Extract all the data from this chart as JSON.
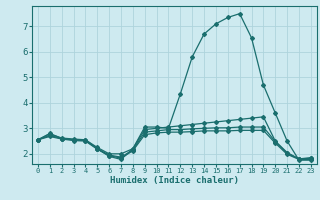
{
  "xlabel": "Humidex (Indice chaleur)",
  "background_color": "#ceeaf0",
  "grid_color": "#aed4dc",
  "line_color": "#1a6e6e",
  "xlim": [
    -0.5,
    23.5
  ],
  "ylim": [
    1.6,
    7.8
  ],
  "xticks": [
    0,
    1,
    2,
    3,
    4,
    5,
    6,
    7,
    8,
    9,
    10,
    11,
    12,
    13,
    14,
    15,
    16,
    17,
    18,
    19,
    20,
    21,
    22,
    23
  ],
  "yticks": [
    2,
    3,
    4,
    5,
    6,
    7
  ],
  "lines": [
    [
      2.55,
      2.8,
      2.6,
      2.55,
      2.55,
      2.2,
      1.9,
      1.78,
      2.2,
      3.05,
      3.05,
      3.0,
      4.35,
      5.8,
      6.7,
      7.1,
      7.35,
      7.5,
      6.55,
      4.7,
      3.6,
      2.5,
      1.75,
      1.75
    ],
    [
      2.55,
      2.78,
      2.62,
      2.58,
      2.55,
      2.25,
      2.0,
      2.0,
      2.2,
      2.95,
      3.0,
      3.05,
      3.1,
      3.15,
      3.2,
      3.25,
      3.3,
      3.35,
      3.4,
      3.45,
      2.5,
      2.05,
      1.8,
      1.85
    ],
    [
      2.55,
      2.72,
      2.6,
      2.55,
      2.52,
      2.2,
      1.95,
      1.87,
      2.15,
      2.85,
      2.9,
      2.95,
      2.95,
      2.98,
      3.0,
      3.02,
      3.02,
      3.05,
      3.05,
      3.05,
      2.48,
      2.02,
      1.8,
      1.82
    ],
    [
      2.55,
      2.68,
      2.58,
      2.52,
      2.5,
      2.18,
      1.93,
      1.83,
      2.12,
      2.75,
      2.82,
      2.85,
      2.85,
      2.87,
      2.9,
      2.9,
      2.9,
      2.92,
      2.92,
      2.92,
      2.42,
      1.98,
      1.78,
      1.78
    ]
  ]
}
